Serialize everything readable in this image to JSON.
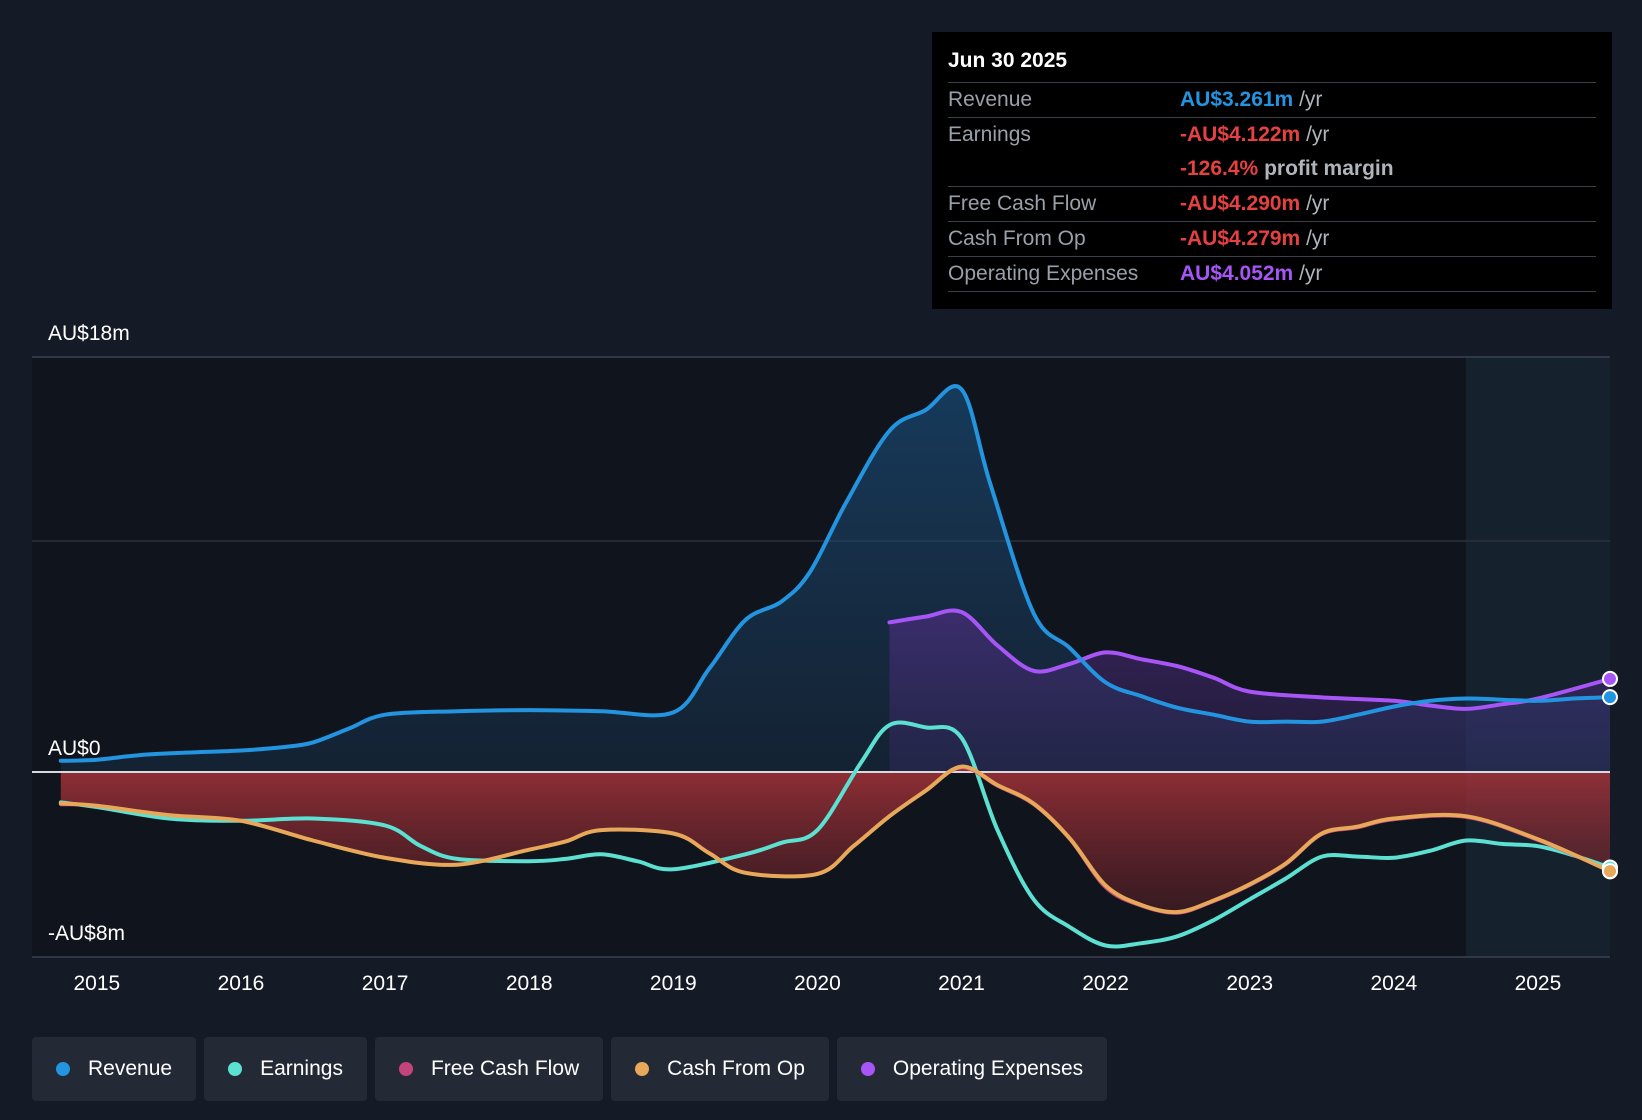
{
  "tooltip": {
    "date": "Jun 30 2025",
    "rows": [
      {
        "label": "Revenue",
        "value": "AU$3.261m",
        "unit": "/yr",
        "color": "#2394df"
      },
      {
        "label": "Earnings",
        "value": "-AU$4.122m",
        "unit": "/yr",
        "color": "#e64141",
        "extra_value": "-126.4%",
        "extra_unit": "profit margin"
      },
      {
        "label": "Free Cash Flow",
        "value": "-AU$4.290m",
        "unit": "/yr",
        "color": "#e64141"
      },
      {
        "label": "Cash From Op",
        "value": "-AU$4.279m",
        "unit": "/yr",
        "color": "#e64141"
      },
      {
        "label": "Operating Expenses",
        "value": "AU$4.052m",
        "unit": "/yr",
        "color": "#a855f7"
      }
    ]
  },
  "legend": [
    {
      "label": "Revenue",
      "color": "#2394df"
    },
    {
      "label": "Earnings",
      "color": "#5ce0d2"
    },
    {
      "label": "Free Cash Flow",
      "color": "#c2447a"
    },
    {
      "label": "Cash From Op",
      "color": "#e8a85a"
    },
    {
      "label": "Operating Expenses",
      "color": "#a855f7"
    }
  ],
  "chart_data": {
    "type": "area",
    "title": "",
    "xlabel": "",
    "ylabel": "",
    "y_tick_labels": {
      "top": "AU$18m",
      "zero": "AU$0",
      "bottom": "-AU$8m"
    },
    "ylim": [
      -8,
      18
    ],
    "xlim": [
      2014.55,
      2025.5
    ],
    "x_ticks": [
      2015,
      2016,
      2017,
      2018,
      2019,
      2020,
      2021,
      2022,
      2023,
      2024,
      2025
    ],
    "forecast_start": 2024.5,
    "series": [
      {
        "name": "Revenue",
        "color": "#2394df",
        "points": [
          [
            2014.75,
            0.5
          ],
          [
            2015,
            0.55
          ],
          [
            2015.3,
            0.75
          ],
          [
            2015.6,
            0.85
          ],
          [
            2016,
            0.95
          ],
          [
            2016.3,
            1.1
          ],
          [
            2016.5,
            1.3
          ],
          [
            2016.75,
            1.9
          ],
          [
            2017,
            2.5
          ],
          [
            2017.5,
            2.65
          ],
          [
            2018,
            2.7
          ],
          [
            2018.5,
            2.65
          ],
          [
            2019,
            2.6
          ],
          [
            2019.25,
            4.5
          ],
          [
            2019.5,
            6.6
          ],
          [
            2019.75,
            7.4
          ],
          [
            2019.95,
            8.7
          ],
          [
            2020.2,
            11.7
          ],
          [
            2020.5,
            14.8
          ],
          [
            2020.75,
            15.7
          ],
          [
            2021,
            16.6
          ],
          [
            2021.2,
            12.5
          ],
          [
            2021.5,
            6.9
          ],
          [
            2021.75,
            5.4
          ],
          [
            2022,
            3.9
          ],
          [
            2022.25,
            3.3
          ],
          [
            2022.5,
            2.8
          ],
          [
            2022.75,
            2.5
          ],
          [
            2023,
            2.2
          ],
          [
            2023.25,
            2.2
          ],
          [
            2023.5,
            2.2
          ],
          [
            2023.75,
            2.5
          ],
          [
            2024,
            2.85
          ],
          [
            2024.25,
            3.1
          ],
          [
            2024.5,
            3.2
          ],
          [
            2024.75,
            3.15
          ],
          [
            2025,
            3.1
          ],
          [
            2025.25,
            3.2
          ],
          [
            2025.5,
            3.26
          ]
        ]
      },
      {
        "name": "Earnings",
        "color": "#5ce0d2",
        "points": [
          [
            2014.75,
            -1.3
          ],
          [
            2015,
            -1.5
          ],
          [
            2015.5,
            -2.0
          ],
          [
            2016,
            -2.1
          ],
          [
            2016.5,
            -2.0
          ],
          [
            2017,
            -2.3
          ],
          [
            2017.25,
            -3.2
          ],
          [
            2017.5,
            -3.75
          ],
          [
            2018,
            -3.85
          ],
          [
            2018.25,
            -3.75
          ],
          [
            2018.5,
            -3.55
          ],
          [
            2018.75,
            -3.85
          ],
          [
            2019,
            -4.2
          ],
          [
            2019.5,
            -3.55
          ],
          [
            2019.75,
            -3.05
          ],
          [
            2020,
            -2.5
          ],
          [
            2020.3,
            0.4
          ],
          [
            2020.5,
            2.05
          ],
          [
            2020.75,
            1.95
          ],
          [
            2021,
            1.5
          ],
          [
            2021.25,
            -2.5
          ],
          [
            2021.5,
            -5.5
          ],
          [
            2021.75,
            -6.7
          ],
          [
            2022,
            -7.5
          ],
          [
            2022.25,
            -7.4
          ],
          [
            2022.5,
            -7.1
          ],
          [
            2022.75,
            -6.4
          ],
          [
            2023,
            -5.5
          ],
          [
            2023.25,
            -4.6
          ],
          [
            2023.5,
            -3.65
          ],
          [
            2023.75,
            -3.65
          ],
          [
            2024,
            -3.7
          ],
          [
            2024.25,
            -3.4
          ],
          [
            2024.5,
            -2.95
          ],
          [
            2024.75,
            -3.1
          ],
          [
            2025,
            -3.2
          ],
          [
            2025.25,
            -3.6
          ],
          [
            2025.5,
            -4.12
          ]
        ]
      },
      {
        "name": "Free Cash Flow",
        "color": "#c2447a",
        "points": [
          [
            2014.75,
            -1.4
          ],
          [
            2015,
            -1.45
          ],
          [
            2015.5,
            -1.85
          ],
          [
            2016,
            -2.1
          ],
          [
            2016.5,
            -2.95
          ],
          [
            2017,
            -3.7
          ],
          [
            2017.5,
            -4.0
          ],
          [
            2018,
            -3.35
          ],
          [
            2018.25,
            -3.0
          ],
          [
            2018.5,
            -2.5
          ],
          [
            2019,
            -2.65
          ],
          [
            2019.25,
            -3.5
          ],
          [
            2019.5,
            -4.35
          ],
          [
            2020,
            -4.4
          ],
          [
            2020.25,
            -3.2
          ],
          [
            2020.5,
            -1.9
          ],
          [
            2020.75,
            -0.8
          ],
          [
            2021,
            0.2
          ],
          [
            2021.25,
            -0.6
          ],
          [
            2021.5,
            -1.4
          ],
          [
            2021.75,
            -2.9
          ],
          [
            2022,
            -5.0
          ],
          [
            2022.25,
            -5.8
          ],
          [
            2022.5,
            -6.1
          ],
          [
            2022.75,
            -5.6
          ],
          [
            2023,
            -4.9
          ],
          [
            2023.25,
            -4.0
          ],
          [
            2023.5,
            -2.7
          ],
          [
            2023.75,
            -2.4
          ],
          [
            2024,
            -2.05
          ],
          [
            2024.5,
            -1.95
          ],
          [
            2025,
            -2.95
          ],
          [
            2025.5,
            -4.29
          ]
        ]
      },
      {
        "name": "Cash From Op",
        "color": "#e8a85a",
        "points": [
          [
            2014.75,
            -1.35
          ],
          [
            2015,
            -1.45
          ],
          [
            2015.5,
            -1.85
          ],
          [
            2016,
            -2.1
          ],
          [
            2016.5,
            -2.95
          ],
          [
            2017,
            -3.7
          ],
          [
            2017.5,
            -4.0
          ],
          [
            2018,
            -3.35
          ],
          [
            2018.25,
            -3.0
          ],
          [
            2018.5,
            -2.5
          ],
          [
            2019,
            -2.65
          ],
          [
            2019.25,
            -3.5
          ],
          [
            2019.5,
            -4.35
          ],
          [
            2020,
            -4.4
          ],
          [
            2020.25,
            -3.2
          ],
          [
            2020.5,
            -1.9
          ],
          [
            2020.75,
            -0.8
          ],
          [
            2021,
            0.25
          ],
          [
            2021.25,
            -0.55
          ],
          [
            2021.5,
            -1.35
          ],
          [
            2021.75,
            -2.85
          ],
          [
            2022,
            -4.9
          ],
          [
            2022.25,
            -5.75
          ],
          [
            2022.5,
            -6.05
          ],
          [
            2022.75,
            -5.55
          ],
          [
            2023,
            -4.85
          ],
          [
            2023.25,
            -3.95
          ],
          [
            2023.5,
            -2.65
          ],
          [
            2023.75,
            -2.35
          ],
          [
            2024,
            -2.0
          ],
          [
            2024.5,
            -1.9
          ],
          [
            2025,
            -2.9
          ],
          [
            2025.5,
            -4.28
          ]
        ]
      },
      {
        "name": "Operating Expenses",
        "color": "#a855f7",
        "points": [
          [
            2020.5,
            6.5
          ],
          [
            2020.75,
            6.75
          ],
          [
            2021,
            6.95
          ],
          [
            2021.25,
            5.5
          ],
          [
            2021.5,
            4.4
          ],
          [
            2021.75,
            4.7
          ],
          [
            2022,
            5.2
          ],
          [
            2022.25,
            4.9
          ],
          [
            2022.5,
            4.6
          ],
          [
            2022.75,
            4.1
          ],
          [
            2023,
            3.5
          ],
          [
            2023.5,
            3.25
          ],
          [
            2024,
            3.1
          ],
          [
            2024.25,
            2.9
          ],
          [
            2024.5,
            2.75
          ],
          [
            2024.75,
            2.95
          ],
          [
            2025,
            3.2
          ],
          [
            2025.5,
            4.05
          ]
        ]
      }
    ]
  }
}
